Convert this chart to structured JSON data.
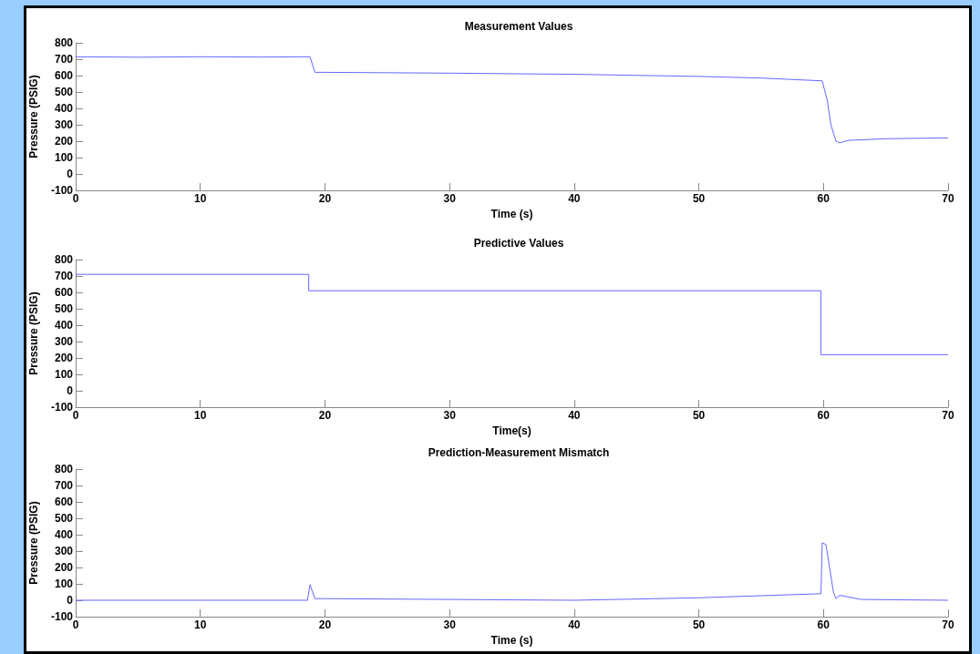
{
  "chart_data": [
    {
      "type": "line",
      "title": "Measurement Values",
      "xlabel": "Time (s)",
      "ylabel": "Pressure (PSIG)",
      "xlim": [
        0,
        70
      ],
      "xticks": [
        0,
        10,
        20,
        30,
        40,
        50,
        60,
        70
      ],
      "ylim": [
        -100,
        800
      ],
      "yticks": [
        -100,
        0,
        100,
        200,
        300,
        400,
        500,
        600,
        700,
        800
      ],
      "grid": false,
      "marker": "none",
      "line_style": "solid",
      "series": [
        {
          "color": "#6666ff",
          "x": [
            0,
            5,
            10,
            15,
            18.8,
            19.2,
            20,
            30,
            40,
            50,
            55,
            59.9,
            60.3,
            60.6,
            61,
            61.3,
            62,
            65,
            70
          ],
          "values": [
            715,
            712,
            715,
            713,
            715,
            620,
            620,
            615,
            608,
            595,
            585,
            568,
            450,
            300,
            200,
            190,
            205,
            215,
            220
          ]
        }
      ]
    },
    {
      "type": "line",
      "title": "Predictive Values",
      "xlabel": "Time(s)",
      "ylabel": "Pressure (PSIG)",
      "xlim": [
        0,
        70
      ],
      "xticks": [
        0,
        10,
        20,
        30,
        40,
        50,
        60,
        70
      ],
      "ylim": [
        -100,
        800
      ],
      "yticks": [
        -100,
        0,
        100,
        200,
        300,
        400,
        500,
        600,
        700,
        800
      ],
      "grid": false,
      "marker": "none",
      "line_style": "solid",
      "series": [
        {
          "color": "#6666ff",
          "x": [
            0,
            18.7,
            18.7,
            59.8,
            59.8,
            70
          ],
          "values": [
            710,
            710,
            610,
            610,
            220,
            220
          ]
        }
      ]
    },
    {
      "type": "line",
      "title": "Prediction-Measurement Mismatch",
      "xlabel": "Time (s)",
      "ylabel": "Pressure (PSIG)",
      "xlim": [
        0,
        70
      ],
      "xticks": [
        0,
        10,
        20,
        30,
        40,
        50,
        60,
        70
      ],
      "ylim": [
        -100,
        800
      ],
      "yticks": [
        -100,
        0,
        100,
        200,
        300,
        400,
        500,
        600,
        700,
        800
      ],
      "grid": false,
      "marker": "none",
      "line_style": "solid",
      "series": [
        {
          "color": "#6666ff",
          "x": [
            0,
            10,
            18.6,
            18.8,
            19.2,
            20,
            30,
            40,
            50,
            59.8,
            59.9,
            60.2,
            60.8,
            61,
            61.3,
            62,
            63,
            70
          ],
          "values": [
            0,
            0,
            0,
            95,
            10,
            10,
            5,
            0,
            15,
            40,
            350,
            340,
            50,
            10,
            30,
            20,
            5,
            0
          ]
        }
      ]
    }
  ]
}
